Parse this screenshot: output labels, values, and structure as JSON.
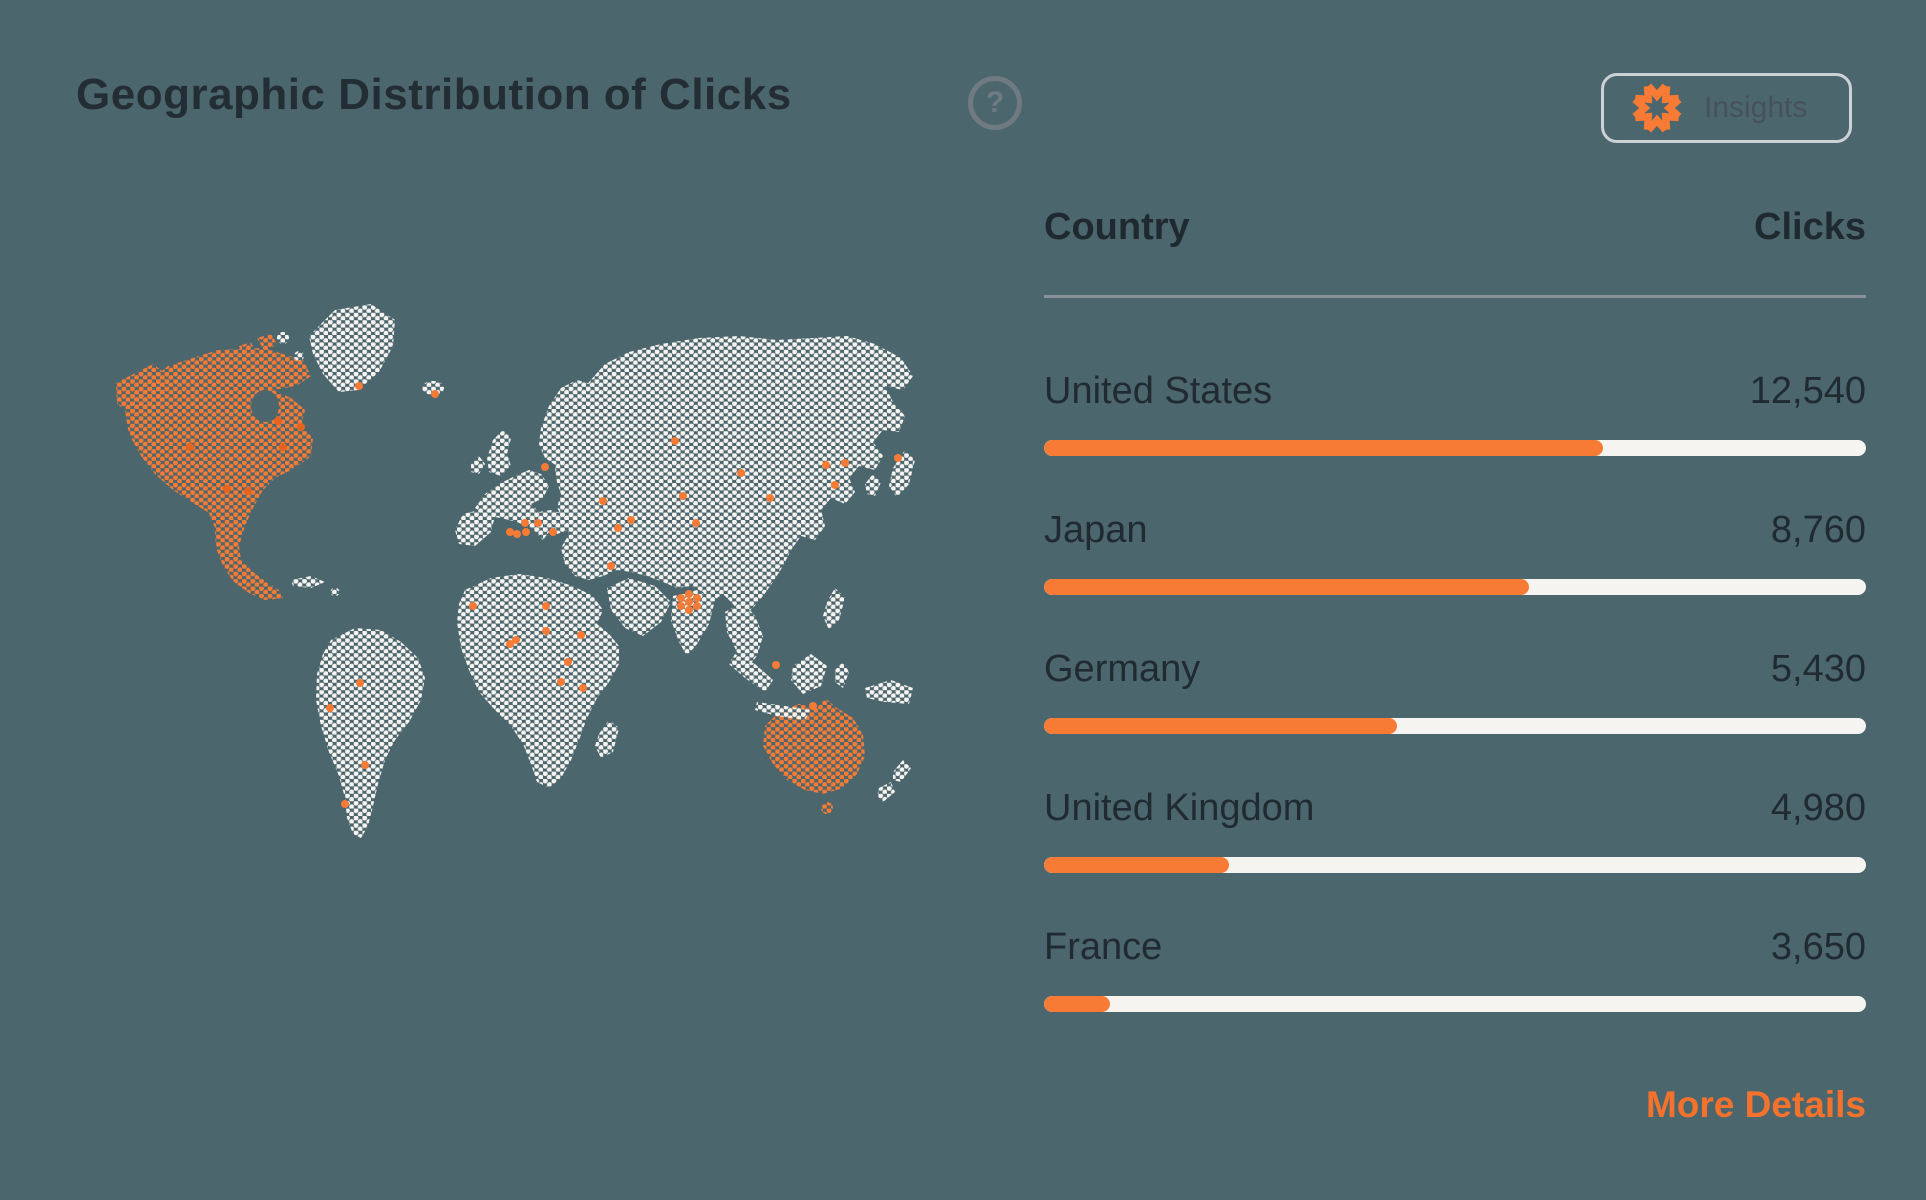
{
  "header": {
    "title": "Geographic Distribution of Clicks",
    "help_glyph": "?",
    "insights_button": {
      "label": "Insights",
      "icon": "pinwheel-asterisk-icon"
    }
  },
  "map": {
    "type": "dotted-world-map",
    "highlighted_regions": [
      "North America",
      "Australia"
    ],
    "region_base_color": "#F6F4F1",
    "region_highlight_color": "#F87B35",
    "city_dot_color": "#F87B35"
  },
  "table": {
    "col_country": "Country",
    "col_clicks": "Clicks",
    "rows": [
      {
        "country": "United States",
        "clicks": "12,540",
        "bar_percent": 68
      },
      {
        "country": "Japan",
        "clicks": "8,760",
        "bar_percent": 59
      },
      {
        "country": "Germany",
        "clicks": "5,430",
        "bar_percent": 43
      },
      {
        "country": "United Kingdom",
        "clicks": "4,980",
        "bar_percent": 22.5
      },
      {
        "country": "France",
        "clicks": "3,650",
        "bar_percent": 8
      }
    ]
  },
  "footer": {
    "more_details": "More Details"
  },
  "colors": {
    "background": "#4C666D",
    "accent_orange": "#F87B35",
    "text_dark": "#222D33",
    "divider": "#8A9299",
    "bar_track": "#F6F4F1"
  },
  "chart_data": {
    "type": "table",
    "title": "Geographic Distribution of Clicks",
    "columns": [
      "Country",
      "Clicks"
    ],
    "categories": [
      "United States",
      "Japan",
      "Germany",
      "United Kingdom",
      "France"
    ],
    "values": [
      12540,
      8760,
      5430,
      4980,
      3650
    ],
    "bar_fill_percent": [
      68,
      59,
      43,
      22.5,
      8
    ],
    "map_highlighted_regions": [
      "North America",
      "Australia"
    ],
    "legend": "none",
    "grid": "off"
  }
}
